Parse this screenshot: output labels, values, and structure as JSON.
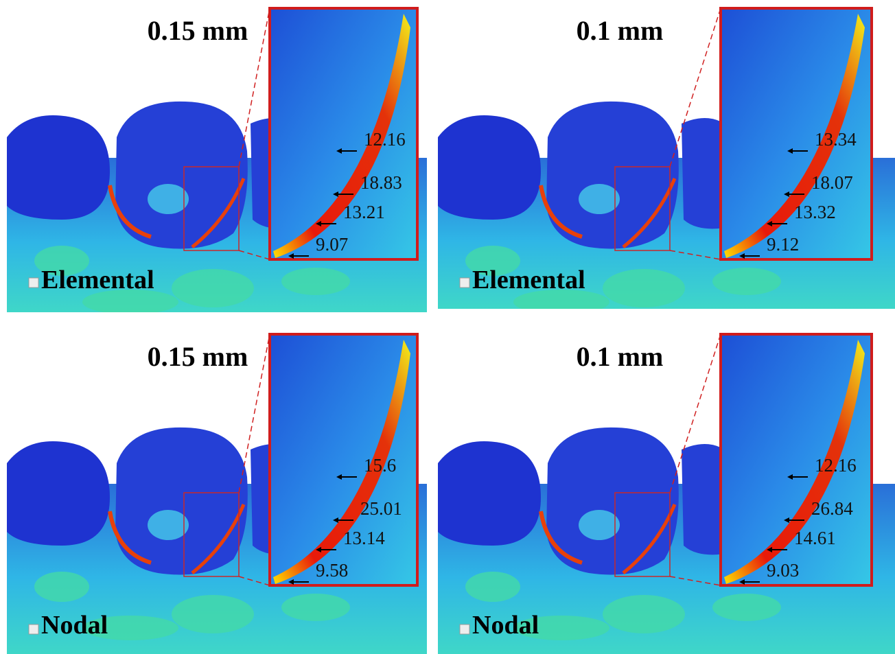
{
  "panels": [
    {
      "title": "0.15 mm",
      "method": "Elemental",
      "labels": [
        "12.16",
        "18.83",
        "13.21",
        "9.07"
      ]
    },
    {
      "title": "0.1 mm",
      "method": "Elemental",
      "labels": [
        "13.34",
        "18.07",
        "13.32",
        "9.12"
      ]
    },
    {
      "title": "0.15 mm",
      "method": "Nodal",
      "labels": [
        "15.6",
        "25.01",
        "13.14",
        "9.58"
      ]
    },
    {
      "title": "0.1 mm",
      "method": "Nodal",
      "labels": [
        "12.16",
        "26.84",
        "14.61",
        "9.03"
      ]
    }
  ]
}
